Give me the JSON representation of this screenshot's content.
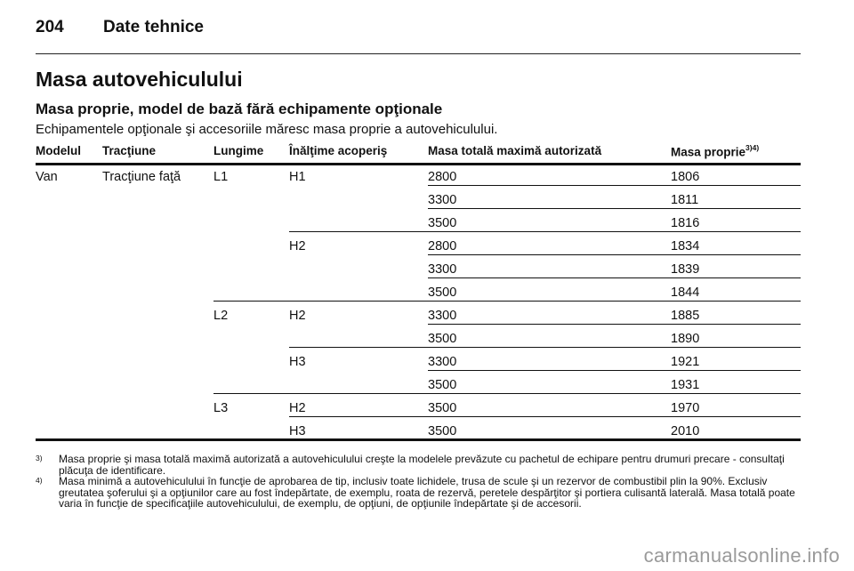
{
  "header": {
    "page_number": "204",
    "chapter": "Date tehnice"
  },
  "section": {
    "title": "Masa autovehiculului",
    "subtitle": "Masa proprie, model de bază fără echipamente opţionale",
    "intro": "Echipamentele opţionale şi accesoriile măresc masa proprie a autovehiculului."
  },
  "table": {
    "headers": {
      "model": "Modelul",
      "drive": "Tracţiune",
      "length": "Lungime",
      "roof_height": "Înălţime acoperiş",
      "gvw": "Masa totală maximă autorizată",
      "curb_weight": "Masa proprie",
      "curb_weight_refs": "3)4)"
    },
    "groups": {
      "model": "Van",
      "drive": "Tracţiune faţă",
      "lengths": [
        "L1",
        "L2",
        "L3"
      ],
      "heights": [
        "H1",
        "H2",
        "H2",
        "H3",
        "H2",
        "H3"
      ]
    },
    "rows": [
      {
        "gvw": "2800",
        "curb_weight": "1806"
      },
      {
        "gvw": "3300",
        "curb_weight": "1811"
      },
      {
        "gvw": "3500",
        "curb_weight": "1816"
      },
      {
        "gvw": "2800",
        "curb_weight": "1834"
      },
      {
        "gvw": "3300",
        "curb_weight": "1839"
      },
      {
        "gvw": "3500",
        "curb_weight": "1844"
      },
      {
        "gvw": "3300",
        "curb_weight": "1885"
      },
      {
        "gvw": "3500",
        "curb_weight": "1890"
      },
      {
        "gvw": "3300",
        "curb_weight": "1921"
      },
      {
        "gvw": "3500",
        "curb_weight": "1931"
      },
      {
        "gvw": "3500",
        "curb_weight": "1970"
      },
      {
        "gvw": "3500",
        "curb_weight": "2010"
      }
    ]
  },
  "footnotes": [
    {
      "mark": "3)",
      "text": "Masa proprie şi masa totală maximă autorizată a autovehiculului creşte la modelele prevăzute cu pachetul de echipare pentru drumuri precare - consultaţi plăcuţa de identificare."
    },
    {
      "mark": "4)",
      "text": "Masa minimă a autovehiculului în funcţie de aprobarea de tip, inclusiv toate lichidele, trusa de scule şi un rezervor de combustibil plin la 90%. Exclusiv greutatea şoferului şi a opţiunilor care au fost îndepărtate, de exemplu, roata de rezervă, peretele despărţitor şi portiera culisantă laterală. Masa totală poate varia în funcţie de specificaţiile autovehiculului, de exemplu, de opţiuni, de opţiunile îndepărtate şi de accesorii."
    }
  ],
  "watermark": "carmanualsonline.info"
}
